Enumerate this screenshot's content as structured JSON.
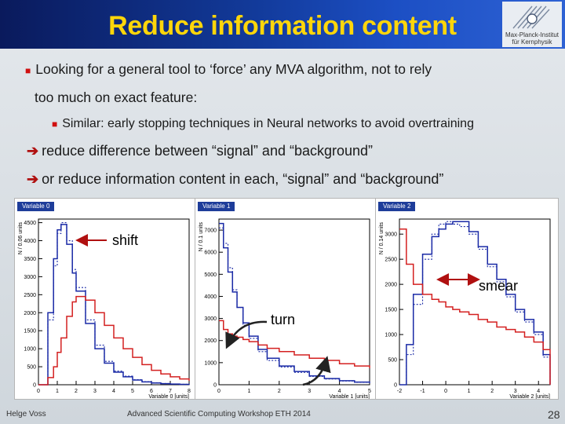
{
  "slide": {
    "title": "Reduce information content",
    "logo_text": [
      "Max-Planck-Institut",
      "für Kernphysik"
    ],
    "bullets": {
      "b1_line1": "Looking for a general tool to ‘force’ any MVA algorithm, not to rely",
      "b1_line2": "too much on exact feature:",
      "b2": "Similar: early stopping techniques in Neural networks to avoid overtraining",
      "b3": "reduce difference between “signal” and “background”",
      "b4": "or  reduce information content in each, “signal” and “background”"
    },
    "annotations": {
      "shift": "shift",
      "turn": "turn",
      "smear": "smear"
    },
    "footer": {
      "author": "Helge Voss",
      "event": "Advanced Scientific Computing Workshop ETH 2014",
      "page": "28"
    },
    "colors": {
      "title": "#ffd60a",
      "signal": "#1a2aa6",
      "background": "#d42020",
      "arrow": "#b01010"
    }
  },
  "chart_data": [
    {
      "type": "line",
      "tag": "Variable 0",
      "xlabel": "Variable 0 [units]",
      "ylabel": "N / 0.06 units",
      "xlim": [
        0,
        8
      ],
      "ylim": [
        0,
        4600
      ],
      "xticks": [
        "0",
        "1",
        "2",
        "3",
        "4",
        "5",
        "6",
        "7",
        "8"
      ],
      "yticks": [
        [
          "0",
          0
        ],
        [
          "500",
          500
        ],
        [
          "1000",
          1000
        ],
        [
          "1500",
          1500
        ],
        [
          "2000",
          2000
        ],
        [
          "2500",
          2500
        ],
        [
          "3000",
          3000
        ],
        [
          "3500",
          3500
        ],
        [
          "4000",
          4000
        ],
        [
          "4500",
          4500
        ]
      ],
      "x": [
        0,
        0.5,
        0.8,
        1.0,
        1.2,
        1.5,
        1.8,
        2.0,
        2.5,
        3.0,
        3.5,
        4.0,
        4.5,
        5.0,
        5.5,
        6.0,
        6.5,
        7.0,
        7.5,
        8.0
      ],
      "series": [
        {
          "values": [
            0,
            2000,
            3500,
            4300,
            4450,
            3900,
            3100,
            2600,
            1700,
            1000,
            600,
            350,
            220,
            130,
            80,
            50,
            30,
            20,
            10,
            5
          ],
          "color": "blue",
          "dash": "solid"
        },
        {
          "values": [
            0,
            1800,
            3300,
            4200,
            4500,
            4000,
            3200,
            2700,
            1800,
            1100,
            650,
            380,
            240,
            140,
            85,
            55,
            35,
            22,
            12,
            6
          ],
          "color": "blue",
          "dash": "dotted"
        },
        {
          "values": [
            0,
            200,
            500,
            900,
            1300,
            1900,
            2300,
            2450,
            2350,
            2000,
            1650,
            1300,
            1000,
            760,
            560,
            400,
            300,
            220,
            160,
            110
          ],
          "color": "red",
          "dash": "solid"
        }
      ]
    },
    {
      "type": "line",
      "tag": "Variable 1",
      "xlabel": "Variable 1  [units]",
      "ylabel": "N / 0.1 units",
      "xlim": [
        0,
        5
      ],
      "ylim": [
        0,
        7500
      ],
      "xticks": [
        "0",
        "1",
        "2",
        "3",
        "4",
        "5"
      ],
      "yticks": [
        [
          "0",
          0
        ],
        [
          "1000",
          1000
        ],
        [
          "2000",
          2000
        ],
        [
          "3000",
          3000
        ],
        [
          "4000",
          4000
        ],
        [
          "5000",
          5000
        ],
        [
          "6000",
          6000
        ],
        [
          "7000",
          7000
        ]
      ],
      "x": [
        0,
        0.15,
        0.3,
        0.45,
        0.6,
        0.8,
        1.0,
        1.3,
        1.6,
        2.0,
        2.5,
        3.0,
        3.5,
        4.0,
        4.5,
        5.0
      ],
      "series": [
        {
          "values": [
            7300,
            6200,
            5100,
            4200,
            3500,
            2800,
            2200,
            1600,
            1200,
            850,
            600,
            400,
            280,
            180,
            120,
            80
          ],
          "color": "blue",
          "dash": "solid"
        },
        {
          "values": [
            7100,
            6400,
            5300,
            4300,
            3500,
            2700,
            2100,
            1500,
            1100,
            800,
            560,
            380,
            260,
            170,
            110,
            75
          ],
          "color": "blue",
          "dash": "dotted"
        },
        {
          "values": [
            2900,
            2500,
            2300,
            2200,
            2150,
            2050,
            1950,
            1800,
            1650,
            1500,
            1350,
            1200,
            1100,
            950,
            850,
            750
          ],
          "color": "red",
          "dash": "solid"
        }
      ]
    },
    {
      "type": "line",
      "tag": "Variable 2",
      "xlabel": "Variable 2  [units]",
      "ylabel": "N / 0.14 units",
      "xlim": [
        -2,
        4.5
      ],
      "ylim": [
        0,
        3300
      ],
      "xticks": [
        "-2",
        "-1",
        "0",
        "1",
        "2",
        "3",
        "4"
      ],
      "yticks": [
        [
          "0",
          0
        ],
        [
          "500",
          500
        ],
        [
          "1000",
          1000
        ],
        [
          "1500",
          1500
        ],
        [
          "2000",
          2000
        ],
        [
          "2500",
          2500
        ],
        [
          "3000",
          3000
        ]
      ],
      "x": [
        -2,
        -1.7,
        -1.4,
        -1.0,
        -0.6,
        -0.3,
        0,
        0.3,
        0.6,
        1.0,
        1.4,
        1.8,
        2.2,
        2.6,
        3.0,
        3.4,
        3.8,
        4.2,
        4.5
      ],
      "series": [
        {
          "values": [
            0,
            800,
            1800,
            2600,
            2950,
            3100,
            3200,
            3250,
            3250,
            3050,
            2750,
            2400,
            2100,
            1800,
            1500,
            1300,
            1050,
            600,
            0
          ],
          "color": "blue",
          "dash": "solid"
        },
        {
          "values": [
            0,
            600,
            1600,
            2500,
            3000,
            3200,
            3250,
            3200,
            3150,
            3000,
            2700,
            2350,
            2050,
            1750,
            1450,
            1250,
            1000,
            550,
            0
          ],
          "color": "blue",
          "dash": "dotted"
        },
        {
          "values": [
            3100,
            2400,
            2000,
            1800,
            1700,
            1650,
            1550,
            1500,
            1450,
            1400,
            1300,
            1250,
            1150,
            1100,
            1050,
            950,
            850,
            700,
            0
          ],
          "color": "red",
          "dash": "solid"
        }
      ]
    }
  ]
}
